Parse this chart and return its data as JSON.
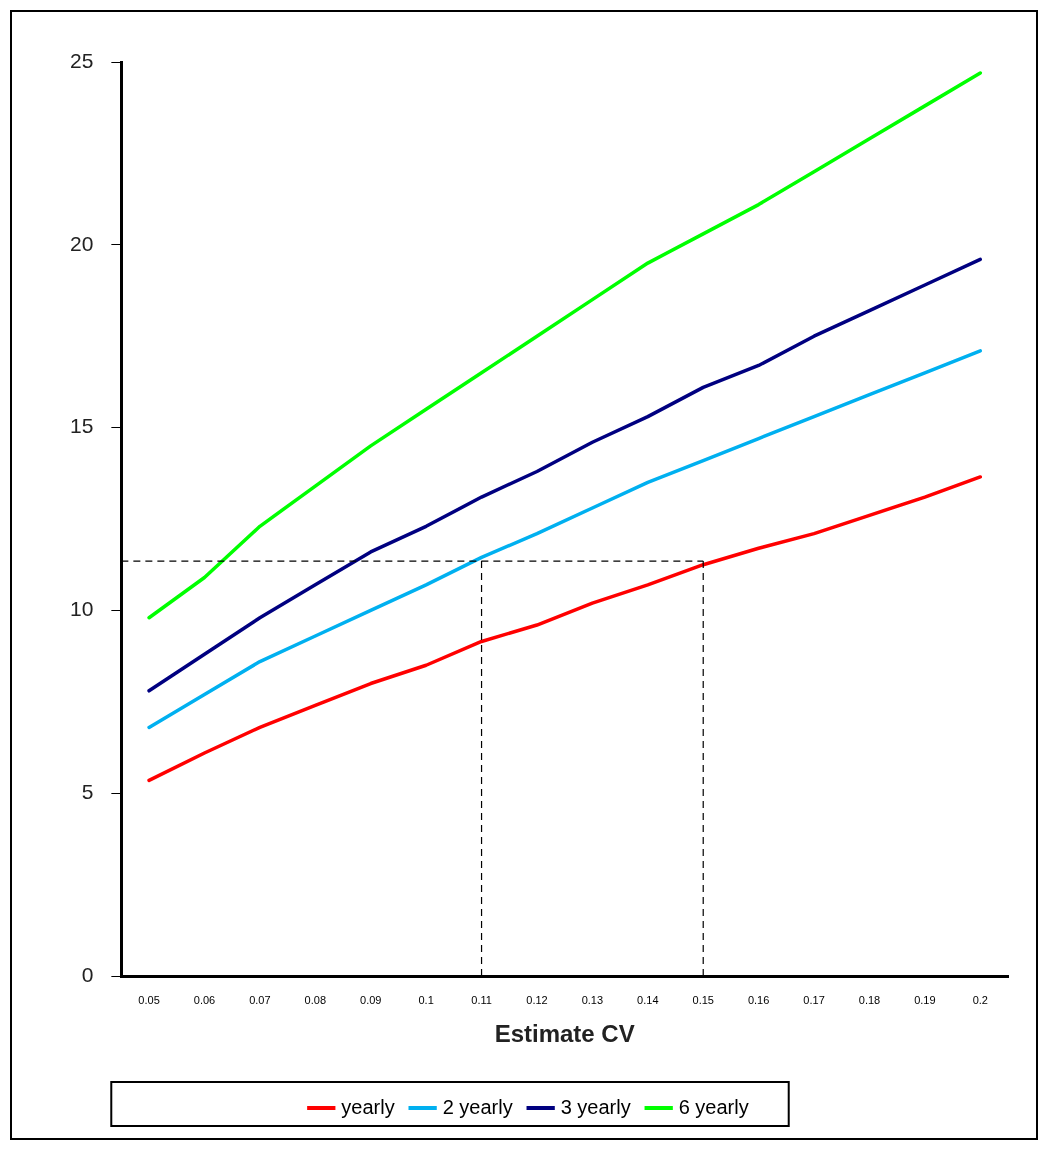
{
  "chart_data": {
    "type": "line",
    "xlabel": "Estimate CV",
    "categories": [
      "0.05",
      "0.06",
      "0.07",
      "0.08",
      "0.09",
      "0.1",
      "0.11",
      "0.12",
      "0.13",
      "0.14",
      "0.15",
      "0.16",
      "0.17",
      "0.18",
      "0.19",
      "0.2"
    ],
    "series": [
      {
        "name": "yearly",
        "color": "#ff0000",
        "values": [
          5.35,
          6.1,
          6.8,
          7.4,
          8.0,
          8.5,
          9.15,
          9.6,
          10.2,
          10.7,
          11.25,
          11.7,
          12.1,
          12.6,
          13.1,
          13.65
        ]
      },
      {
        "name": "2 yearly",
        "color": "#00b0f0",
        "values": [
          6.8,
          7.7,
          8.6,
          9.3,
          10.0,
          10.7,
          11.45,
          12.1,
          12.8,
          13.5,
          14.1,
          14.7,
          15.3,
          15.9,
          16.5,
          17.1
        ]
      },
      {
        "name": "3 yearly",
        "color": "#000080",
        "values": [
          7.8,
          8.8,
          9.8,
          10.7,
          11.6,
          12.3,
          13.1,
          13.8,
          14.6,
          15.3,
          16.1,
          16.7,
          17.5,
          18.2,
          18.9,
          19.6
        ]
      },
      {
        "name": "6 yearly",
        "color": "#00ff00",
        "values": [
          9.8,
          10.9,
          12.3,
          13.4,
          14.5,
          15.5,
          16.5,
          17.5,
          18.5,
          19.5,
          20.3,
          21.1,
          22.0,
          22.9,
          23.8,
          24.7
        ]
      }
    ],
    "ylim": [
      0,
      25
    ],
    "yticks": [
      0,
      5,
      10,
      15,
      20,
      25
    ],
    "grid": false,
    "legend": "bottom",
    "marker": "none",
    "line_style": "solid",
    "ref_lines": [
      {
        "axis": "y",
        "value": 11.35,
        "color": "#000000",
        "line_style": "dashed"
      },
      {
        "axis": "x",
        "value": "0.11",
        "color": "#000000",
        "line_style": "dashed"
      },
      {
        "axis": "x",
        "value": "0.15",
        "color": "#000000",
        "line_style": "dashed"
      }
    ]
  }
}
